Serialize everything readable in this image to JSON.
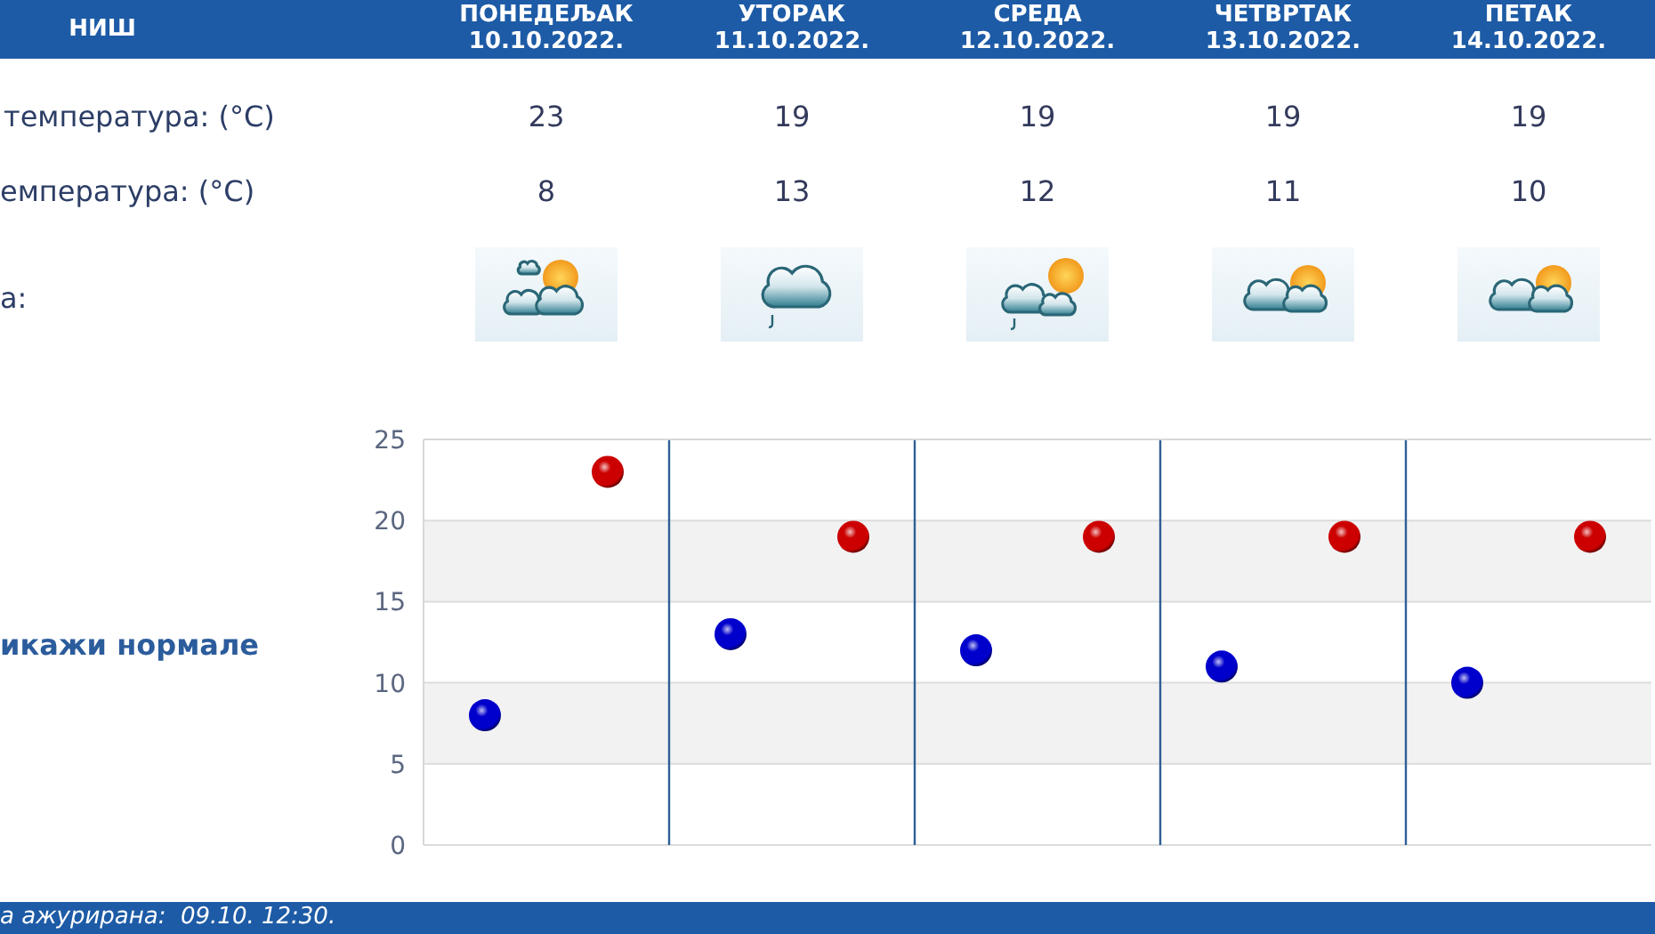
{
  "chart_data": {
    "type": "scatter",
    "title": "НИШ",
    "categories": [
      null,
      null,
      null,
      null,
      null
    ],
    "series": [
      {
        "color": "#cc0000",
        "values": [
          23,
          19,
          19,
          19,
          19
        ]
      },
      {
        "color": "#0000cc",
        "values": [
          8,
          13,
          12,
          11,
          10
        ]
      }
    ],
    "ylim": [
      0,
      25
    ],
    "yticks": [
      0,
      5,
      10,
      15,
      20,
      25
    ],
    "tick_labels": "y",
    "grid": true,
    "bands": [
      {
        "axis": "y",
        "from": 5,
        "to": 10,
        "color": "#f2f2f2"
      },
      {
        "axis": "y",
        "from": 15,
        "to": 20,
        "color": "#f2f2f2"
      }
    ],
    "marker": "circle",
    "data_labels": true,
    "annotations": [
      "ПОНЕДЕЉАК\n10.10.2022.",
      "УТОРАК\n11.10.2022.",
      "СРЕДА\n12.10.2022.",
      "ЧЕТВРТАК\n13.10.2022.",
      "ПЕТАК\n14.10.2022.",
      "температура: (°C)",
      "емпература: (°C)",
      "а:",
      "икажи нормале",
      "а ажурирана:  09.10. 12:30."
    ]
  }
}
